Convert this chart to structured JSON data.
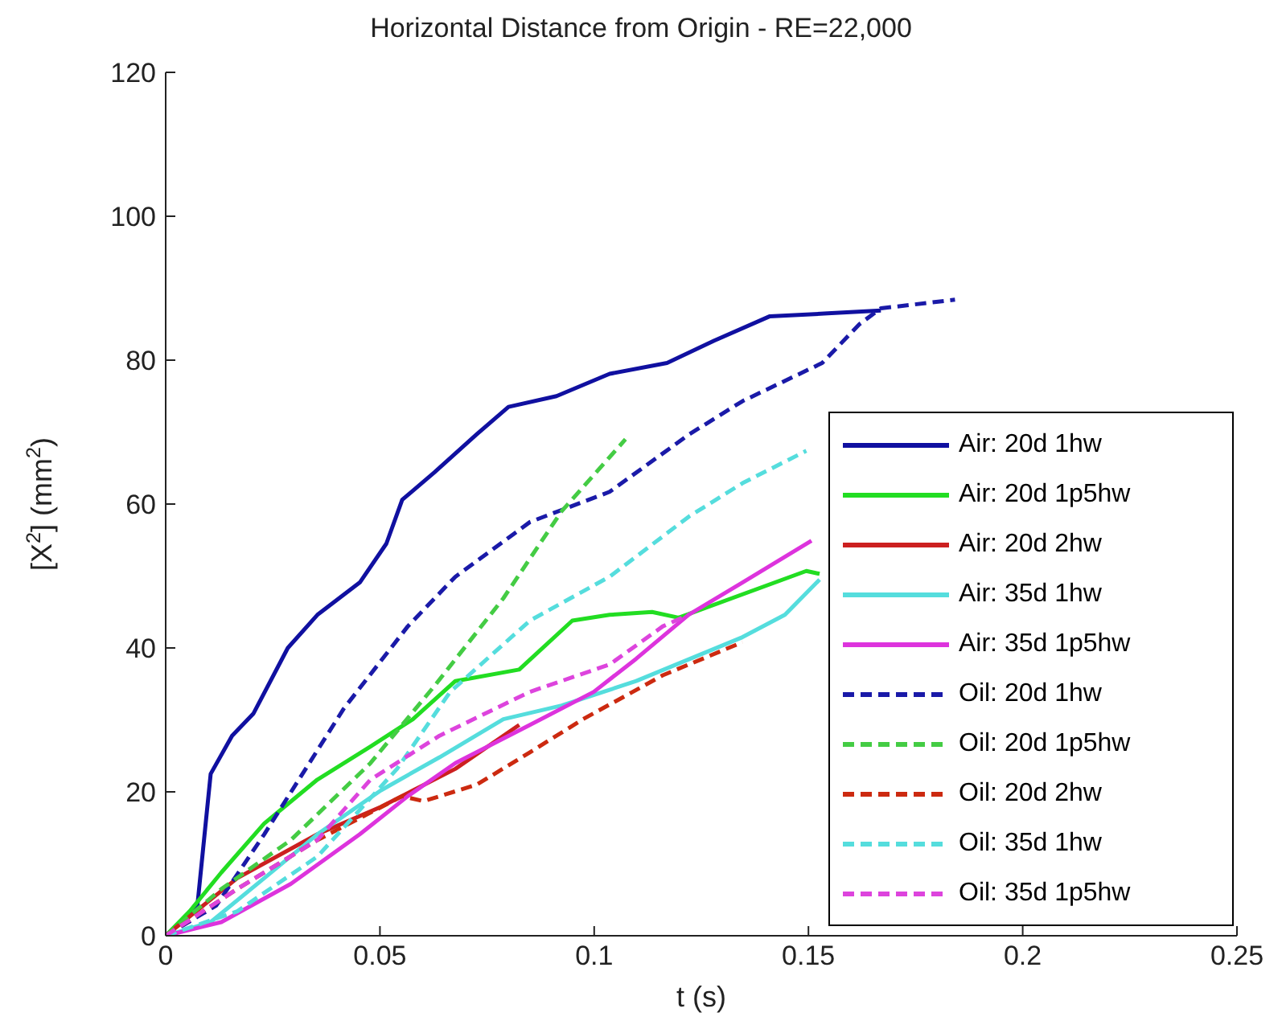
{
  "chart_data": {
    "type": "line",
    "title": "Horizontal Distance from Origin - RE=22,000",
    "xlabel": "t (s)",
    "ylabel": "[X$^{2}$] (mm$^{2}$)",
    "xlim": [
      0,
      0.25
    ],
    "xticks": [
      0,
      0.05,
      0.1,
      0.15,
      0.2,
      0.25
    ],
    "ylim": [
      0,
      120
    ],
    "yticks": [
      0,
      20,
      40,
      60,
      80,
      100,
      120
    ],
    "grid": false,
    "legend": "right",
    "marker": "none",
    "series": [
      {
        "name": "Air: 20d 1hw",
        "color": "#1010a0",
        "line_style": "solid",
        "x": [
          0,
          0.0074,
          0.0105,
          0.0155,
          0.0205,
          0.0285,
          0.0354,
          0.0453,
          0.0515,
          0.0552,
          0.0627,
          0.0726,
          0.08,
          0.0912,
          0.1036,
          0.117,
          0.128,
          0.141,
          0.1545,
          0.1669
        ],
        "values": [
          0,
          4.2,
          22.5,
          27.8,
          30.9,
          40,
          44.6,
          49.1,
          54.5,
          60.6,
          64.4,
          69.7,
          73.5,
          75,
          78.1,
          79.6,
          82.7,
          86.1,
          86.5,
          86.9
        ]
      },
      {
        "name": "Air: 20d 1p5hw",
        "color": "#22dd22",
        "line_style": "solid",
        "x": [
          0,
          0.0056,
          0.013,
          0.023,
          0.0354,
          0.0478,
          0.0577,
          0.0676,
          0.0825,
          0.0949,
          0.1036,
          0.1135,
          0.1197,
          0.1495,
          0.1526
        ],
        "values": [
          0,
          3.4,
          8.8,
          15.6,
          21.7,
          26.3,
          30.1,
          35.4,
          37,
          43.8,
          44.6,
          45,
          44.2,
          50.7,
          50.3
        ]
      },
      {
        "name": "Air: 20d 2hw",
        "color": "#cc2020",
        "line_style": "solid",
        "x": [
          0,
          0.0167,
          0.0354,
          0.0502,
          0.0577,
          0.0676,
          0.0825
        ],
        "values": [
          0,
          8,
          14.1,
          17.9,
          20.2,
          23.2,
          29.3
        ]
      },
      {
        "name": "Air: 35d 1hw",
        "color": "#55dddd",
        "line_style": "solid",
        "x": [
          0,
          0.0105,
          0.023,
          0.0354,
          0.0502,
          0.0639,
          0.0788,
          0.0924,
          0.1098,
          0.1346,
          0.1445,
          0.1526
        ],
        "values": [
          0,
          1.9,
          8,
          14.1,
          20.2,
          24.8,
          30.1,
          32,
          35.4,
          41.5,
          44.6,
          49.5
        ]
      },
      {
        "name": "Air: 35d 1p5hw",
        "color": "#dd33dd",
        "line_style": "solid",
        "x": [
          0,
          0.013,
          0.0292,
          0.0453,
          0.0565,
          0.0676,
          0.085,
          0.0999,
          0.1098,
          0.122,
          0.1346,
          0.1507
        ],
        "values": [
          0,
          1.9,
          7.2,
          14.1,
          19.4,
          24,
          29.3,
          33.9,
          38.5,
          44.6,
          49.1,
          54.9
        ]
      },
      {
        "name": "Oil: 20d 1hw",
        "color": "#1a1aa8",
        "line_style": "dashed",
        "x": [
          0,
          0.0118,
          0.023,
          0.0416,
          0.0565,
          0.0676,
          0.085,
          0.1036,
          0.1222,
          0.1346,
          0.1532,
          0.1619,
          0.1669,
          0.1842
        ],
        "values": [
          0,
          4.2,
          14.1,
          31.6,
          43,
          49.9,
          57.5,
          61.7,
          69.7,
          74.3,
          79.6,
          85,
          87.2,
          88.4
        ]
      },
      {
        "name": "Oil: 20d 1p5hw",
        "color": "#44cc44",
        "line_style": "dashed",
        "x": [
          0,
          0.013,
          0.0292,
          0.0478,
          0.0627,
          0.0788,
          0.0924,
          0.1073
        ],
        "values": [
          0,
          6.5,
          13.3,
          24,
          34.7,
          46.9,
          59,
          69
        ]
      },
      {
        "name": "Oil: 20d 2hw",
        "color": "#cc2a10",
        "line_style": "dashed",
        "x": [
          0,
          0.0167,
          0.0354,
          0.0552,
          0.0602,
          0.0726,
          0.085,
          0.0974,
          0.116,
          0.1346
        ],
        "values": [
          0,
          6.5,
          13.3,
          19.4,
          18.7,
          21,
          25.5,
          30.1,
          36.2,
          40.8
        ]
      },
      {
        "name": "Oil: 35d 1hw",
        "color": "#55dddd",
        "line_style": "dashed",
        "x": [
          0,
          0.0167,
          0.0354,
          0.054,
          0.0664,
          0.085,
          0.1036,
          0.1222,
          0.1346,
          0.1495
        ],
        "values": [
          0,
          3.4,
          11,
          23.2,
          33.9,
          43.8,
          49.9,
          58.3,
          62.9,
          67.4
        ]
      },
      {
        "name": "Oil: 35d 1p5hw",
        "color": "#dd44dd",
        "line_style": "dashed",
        "x": [
          0,
          0.0167,
          0.0354,
          0.0478,
          0.0639,
          0.085,
          0.1036,
          0.116,
          0.122
        ],
        "values": [
          0,
          6.5,
          13.3,
          21.7,
          27.8,
          33.9,
          37.7,
          43,
          44.6
        ]
      }
    ]
  }
}
